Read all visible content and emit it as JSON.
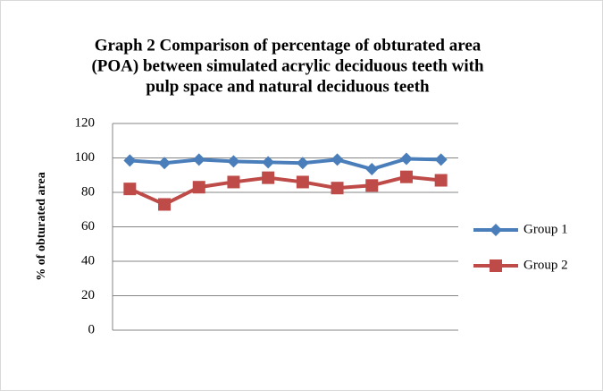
{
  "chart_data": {
    "type": "line",
    "title": [
      "Graph 2  Comparison of percentage of obturated area",
      "(POA)  between simulated acrylic deciduous teeth with",
      "pulp space and natural deciduous teeth"
    ],
    "y_label": "% of obturated  area",
    "categories": [
      null,
      null,
      null,
      null,
      null,
      null,
      null,
      null,
      null,
      null
    ],
    "series": [
      {
        "name": "Group 1",
        "color": "#4a7ebb",
        "marker": "diamond",
        "values": [
          98.5,
          97,
          99,
          98,
          97.5,
          97,
          99,
          93.5,
          99.5,
          99
        ]
      },
      {
        "name": "Group 2",
        "color": "#be4b48",
        "marker": "square",
        "values": [
          82,
          73,
          83,
          86,
          88.5,
          86,
          82.5,
          84,
          89,
          87
        ]
      }
    ],
    "ylim": [
      0,
      120
    ],
    "yticks": [
      0,
      20,
      40,
      60,
      80,
      100,
      120
    ],
    "grid": true,
    "legend": "right"
  }
}
